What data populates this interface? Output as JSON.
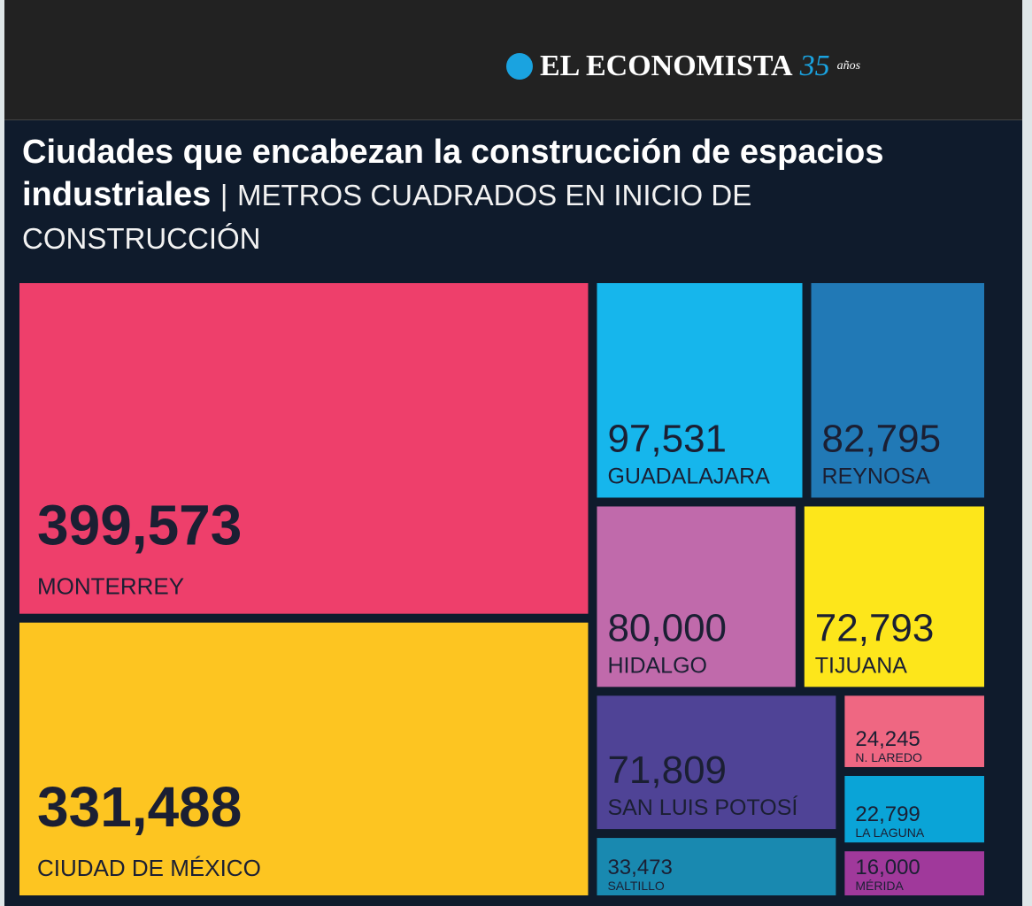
{
  "header": {
    "logo": "EL ECONOMISTA",
    "anniversary": "35",
    "anniversary_suffix": "años"
  },
  "chart_data": {
    "type": "treemap",
    "title": "Ciudades que encabezan la construcción de espacios industriales",
    "title_separator": "|",
    "subtitle": "METROS CUADRADOS EN INICIO DE CONSTRUCCIÓN",
    "categories": [
      "MONTERREY",
      "CIUDAD DE MÉXICO",
      "GUADALAJARA",
      "REYNOSA",
      "HIDALGO",
      "TIJUANA",
      "SAN LUIS POTOSÍ",
      "SALTILLO",
      "N. LAREDO",
      "LA LAGUNA",
      "MÉRIDA"
    ],
    "values": [
      399573,
      331488,
      97531,
      82795,
      80000,
      72793,
      71809,
      33473,
      24245,
      22799,
      16000
    ],
    "value_labels": [
      "399,573",
      "331,488",
      "97,531",
      "82,795",
      "80,000",
      "72,793",
      "71,809",
      "33,473",
      "24,245",
      "22,799",
      "16,000"
    ],
    "colors": [
      "#ee3f6b",
      "#fdc521",
      "#16b6ec",
      "#2179b6",
      "#c06aab",
      "#fde61b",
      "#4f4396",
      "#1989b0",
      "#ef6782",
      "#0aa4d7",
      "#a0399b"
    ]
  }
}
